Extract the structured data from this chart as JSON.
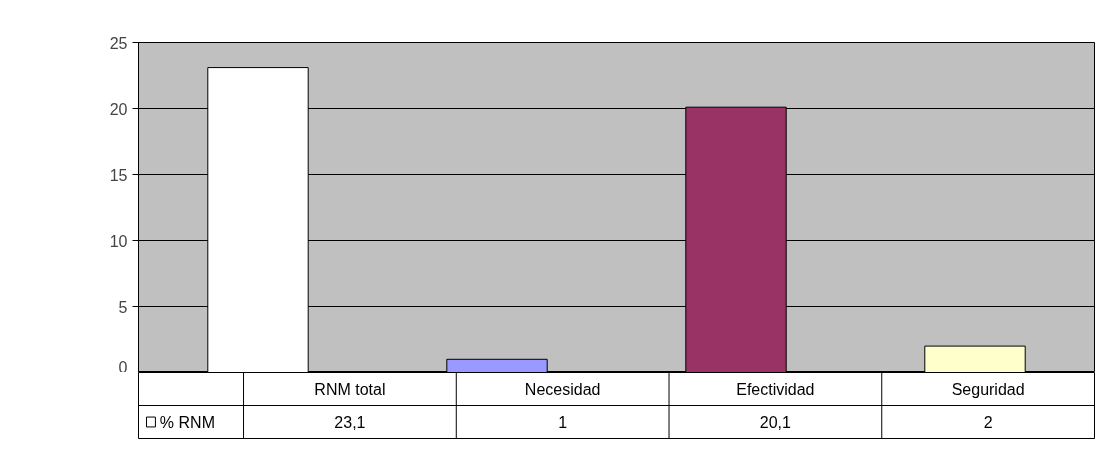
{
  "chart_data": {
    "type": "bar",
    "categories": [
      "RNM total",
      "Necesidad",
      "Efectividad",
      "Seguridad"
    ],
    "series": [
      {
        "name": "% RNM",
        "color": "#ffffff",
        "colors": [
          "#ffffff",
          "#9999ff",
          "#993366",
          "#ffffcc"
        ],
        "values": [
          23.1,
          1,
          20.1,
          2
        ],
        "value_labels": [
          "23,1",
          "1",
          "20,1",
          "2"
        ]
      }
    ],
    "ylim": [
      0,
      25
    ],
    "yticks": [
      0,
      5,
      10,
      15,
      20,
      25
    ],
    "grid": "y"
  }
}
